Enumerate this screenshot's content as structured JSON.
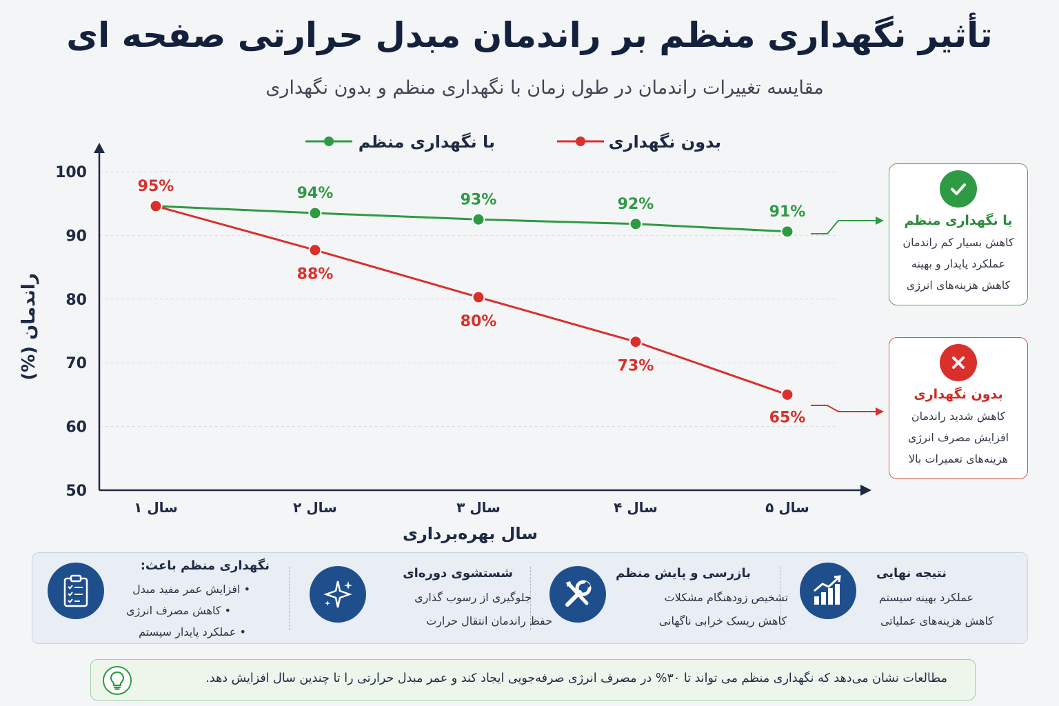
{
  "title": "تأثیر نگهداری منظم بر راندمان مبدل حرارتی صفحه ای",
  "subtitle": "مقایسه تغییرات راندمان در طول زمان با نگهداری منظم و بدون نگهداری",
  "colors": {
    "good": "#2f9a44",
    "bad": "#d9302b",
    "navy": "#1f4e8c",
    "axis": "#1d2a44"
  },
  "chart_data": {
    "type": "line",
    "xlabel": "سال بهره‌برداری",
    "ylabel": "راندمان (%)",
    "ylim": [
      50,
      100
    ],
    "yticks": [
      "50",
      "60",
      "70",
      "80",
      "90",
      "100"
    ],
    "categories": [
      "سال ۱",
      "سال ۲",
      "سال ۳",
      "سال ۴",
      "سال ۵"
    ],
    "grid": true,
    "legend_position": "top",
    "series": [
      {
        "name": "با نگهداری منظم",
        "color": "#2f9a44",
        "values": [
          94.6,
          93.5,
          92.5,
          91.8,
          90.6
        ],
        "labels": [
          "",
          "94%",
          "93%",
          "92%",
          "91%"
        ]
      },
      {
        "name": "بدون نگهداری",
        "color": "#d9302b",
        "values": [
          94.6,
          87.7,
          80.3,
          73.3,
          65.0
        ],
        "labels": [
          "95%",
          "88%",
          "80%",
          "73%",
          "65%"
        ]
      }
    ]
  },
  "side_cards": {
    "good": {
      "icon": "check-icon",
      "title": "با نگهداری منظم",
      "lines": [
        "کاهش بسیار کم راندمان",
        "عملکرد پایدار و بهینه",
        "کاهش هزینه‌های انرژی"
      ]
    },
    "bad": {
      "icon": "x-icon",
      "title": "بدون نگهداری",
      "lines": [
        "کاهش شدید راندمان",
        "افزایش مصرف انرژی",
        "هزینه‌های تعمیرات بالا"
      ]
    }
  },
  "panel": {
    "sections": [
      {
        "icon": "clipboard-checklist-icon",
        "title": "نگهداری منظم باعث:",
        "lines": [
          "• افزایش عمر مفید مبدل",
          "• کاهش مصرف انرژی",
          "• عملکرد پایدار سیستم"
        ]
      },
      {
        "icon": "sparkle-clean-icon",
        "title": "شستشوی دوره‌ای",
        "lines": [
          "جلوگیری از رسوب گذاری",
          "حفظ راندمان انتقال حرارت"
        ]
      },
      {
        "icon": "wrench-screwdriver-icon",
        "title": "بازرسی و پایش منظم",
        "lines": [
          "تشخیص زودهنگام مشکلات",
          "کاهش ریسک خرابی ناگهانی"
        ]
      },
      {
        "icon": "growth-chart-icon",
        "title": "نتیجه نهایی",
        "lines": [
          "عملکرد بهینه سیستم",
          "کاهش هزینه‌های عملیاتی"
        ]
      }
    ]
  },
  "footer": {
    "icon": "lightbulb-icon",
    "text": "مطالعات نشان می‌دهد که نگهداری منظم می تواند تا ۳۰% در مصرف انرژی صرفه‌جویی ایجاد کند و عمر مبدل حرارتی را تا چندین سال افزایش دهد."
  }
}
